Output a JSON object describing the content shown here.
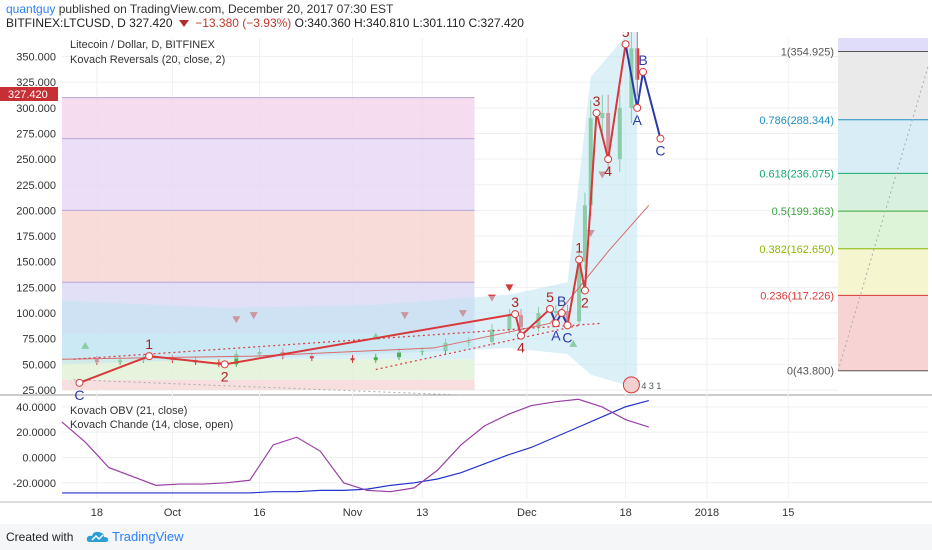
{
  "header": {
    "user": "quantguy",
    "published": "published on TradingView.com, December 20, 2017 07:30 EST",
    "symbol": "BITFINEX:LTCUSD, D",
    "last": "327.420",
    "change": "−13.380 (−3.93%)",
    "ohlc": "O:340.360 H:340.810 L:301.110 C:327.420"
  },
  "footer": {
    "created_with": "Created with",
    "brand": "TradingView"
  },
  "price_tag": "327.420",
  "chart_data": {
    "type": "candlestick",
    "title": "Litecoin / Dollar, D, BITFINEX",
    "indicator_label": "Kovach Reversals (20, close, 2)",
    "yticks": [
      "25.000",
      "50.000",
      "75.000",
      "100.000",
      "125.000",
      "150.000",
      "175.000",
      "200.000",
      "225.000",
      "250.000",
      "275.000",
      "300.000",
      "325.000",
      "350.000"
    ],
    "ylim": [
      25,
      370
    ],
    "xticks": [
      "18",
      "Oct",
      "16",
      "Nov",
      "13",
      "Dec",
      "18",
      "2018",
      "15"
    ],
    "x_dates": [
      "2017-09-18",
      "2017-10-01",
      "2017-10-16",
      "2017-11-01",
      "2017-11-13",
      "2017-12-01",
      "2017-12-18",
      "2018-01-01",
      "2018-01-15"
    ],
    "close_series": [
      {
        "date": "2017-09-15",
        "close": 55
      },
      {
        "date": "2017-09-18",
        "close": 52
      },
      {
        "date": "2017-09-22",
        "close": 54
      },
      {
        "date": "2017-09-26",
        "close": 56
      },
      {
        "date": "2017-10-01",
        "close": 54
      },
      {
        "date": "2017-10-05",
        "close": 52
      },
      {
        "date": "2017-10-09",
        "close": 50
      },
      {
        "date": "2017-10-12",
        "close": 60
      },
      {
        "date": "2017-10-16",
        "close": 62
      },
      {
        "date": "2017-10-20",
        "close": 58
      },
      {
        "date": "2017-10-25",
        "close": 56
      },
      {
        "date": "2017-11-01",
        "close": 54
      },
      {
        "date": "2017-11-05",
        "close": 57
      },
      {
        "date": "2017-11-09",
        "close": 62
      },
      {
        "date": "2017-11-13",
        "close": 63
      },
      {
        "date": "2017-11-17",
        "close": 71
      },
      {
        "date": "2017-11-21",
        "close": 72
      },
      {
        "date": "2017-11-25",
        "close": 84
      },
      {
        "date": "2017-11-28",
        "close": 98
      },
      {
        "date": "2017-11-30",
        "close": 86
      },
      {
        "date": "2017-12-03",
        "close": 100
      },
      {
        "date": "2017-12-06",
        "close": 102
      },
      {
        "date": "2017-12-08",
        "close": 92
      },
      {
        "date": "2017-12-10",
        "close": 150
      },
      {
        "date": "2017-12-11",
        "close": 205
      },
      {
        "date": "2017-12-12",
        "close": 290
      },
      {
        "date": "2017-12-14",
        "close": 295
      },
      {
        "date": "2017-12-15",
        "close": 250
      },
      {
        "date": "2017-12-17",
        "close": 300
      },
      {
        "date": "2017-12-19",
        "close": 358
      },
      {
        "date": "2017-12-20",
        "close": 327.42
      }
    ],
    "wave_points": [
      {
        "label": "C",
        "date": "2017-09-15",
        "price": 32
      },
      {
        "label": "1",
        "date": "2017-09-27",
        "price": 58
      },
      {
        "label": "2",
        "date": "2017-10-10",
        "price": 50
      },
      {
        "label": "3",
        "date": "2017-11-29",
        "price": 99
      },
      {
        "label": "4",
        "date": "2017-11-30",
        "price": 78
      },
      {
        "label": "5",
        "date": "2017-12-05",
        "price": 104
      },
      {
        "label": "A",
        "date": "2017-12-06",
        "price": 90
      },
      {
        "label": "B",
        "date": "2017-12-07",
        "price": 100
      },
      {
        "label": "C",
        "date": "2017-12-08",
        "price": 88
      },
      {
        "label": "1",
        "date": "2017-12-10",
        "price": 152
      },
      {
        "label": "2",
        "date": "2017-12-11",
        "price": 122
      },
      {
        "label": "3",
        "date": "2017-12-13",
        "price": 295
      },
      {
        "label": "4",
        "date": "2017-12-15",
        "price": 250
      },
      {
        "label": "5",
        "date": "2017-12-18",
        "price": 362
      },
      {
        "label": "A",
        "date": "2017-12-20",
        "price": 300
      },
      {
        "label": "B",
        "date": "2017-12-21",
        "price": 335
      },
      {
        "label": "C",
        "date": "2017-12-24",
        "price": 270
      }
    ],
    "fib_levels": [
      {
        "label": "0(43.800)",
        "value": 43.8,
        "color": "#555555"
      },
      {
        "label": "0.236(117.226)",
        "value": 117.226,
        "color": "#d9383a"
      },
      {
        "label": "0.382(162.650)",
        "value": 162.65,
        "color": "#8cb800"
      },
      {
        "label": "0.5(199.363)",
        "value": 199.363,
        "color": "#3aa53a"
      },
      {
        "label": "0.618(236.075)",
        "value": 236.075,
        "color": "#13a86e"
      },
      {
        "label": "0.786(288.344)",
        "value": 288.344,
        "color": "#1f8fc4"
      },
      {
        "label": "1(354.925)",
        "value": 354.925,
        "color": "#555555"
      }
    ],
    "fib_zone_colors": [
      "#f6c8c8",
      "#f3f3c4",
      "#d6f1cf",
      "#cdeed6",
      "#cfe8f4",
      "#e5e5e5",
      "#d7d5f8"
    ],
    "oscillators": {
      "labels": [
        "Kovach OBV (21, close)",
        "Kovach Chande (14, close, open)"
      ],
      "yticks": [
        "40.0000",
        "20.0000",
        "0.0000",
        "-20.0000"
      ],
      "ylim": [
        -32,
        47
      ],
      "obv": [
        -28,
        -28,
        -28,
        -28,
        -28,
        -28,
        -28,
        -28,
        -28,
        -27,
        -27,
        -26,
        -26,
        -25,
        -22,
        -20,
        -17,
        -12,
        -5,
        2,
        8,
        16,
        24,
        32,
        40,
        45
      ],
      "chande": [
        28,
        12,
        -8,
        -15,
        -22,
        -21,
        -21,
        -20,
        -18,
        10,
        16,
        5,
        -20,
        -26,
        -27,
        -24,
        -10,
        10,
        25,
        34,
        41,
        44,
        46,
        40,
        30,
        24
      ]
    },
    "markers": {
      "up": 3,
      "down": 8
    },
    "legend_icon": "4 3 1"
  },
  "icons": {
    "logo": "tradingview-cloud-icon"
  }
}
